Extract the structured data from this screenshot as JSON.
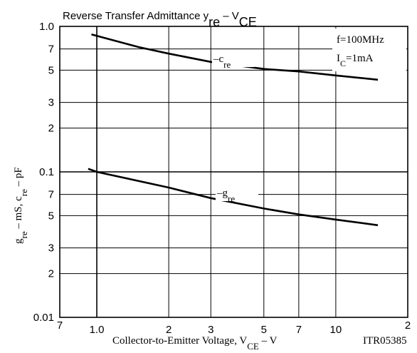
{
  "chart_data": {
    "type": "line",
    "title": [
      "Reverse Transfer Admittance  y",
      "re",
      " – V",
      "CE"
    ],
    "x_label": [
      "Collector-to-Emitter Voltage, V",
      "CE",
      " – V"
    ],
    "y_label": [
      "g",
      "re",
      "  –  mS,  c",
      "re",
      "  –  pF"
    ],
    "code": "ITR05385",
    "annotations": [
      [
        "f=100MHz"
      ],
      [
        "I",
        "C",
        "=1mA"
      ]
    ],
    "xscale": "log",
    "yscale": "log",
    "grid": true,
    "xlim": [
      0.7,
      20
    ],
    "xticks": [
      {
        "value": 0.7,
        "label": "7"
      },
      {
        "value": 1,
        "label": "1.0"
      },
      2,
      3,
      5,
      7,
      10,
      {
        "value": 20,
        "label": "2"
      }
    ],
    "ylim": [
      0.01,
      1
    ],
    "yticks": [
      {
        "value": 1,
        "label": "1.0"
      },
      {
        "value": 0.7,
        "label": "7"
      },
      {
        "value": 0.5,
        "label": "5"
      },
      {
        "value": 0.3,
        "label": "3"
      },
      {
        "value": 0.2,
        "label": "2"
      },
      0.1,
      {
        "value": 0.07,
        "label": "7"
      },
      {
        "value": 0.05,
        "label": "5"
      },
      {
        "value": 0.03,
        "label": "3"
      },
      {
        "value": 0.02,
        "label": "2"
      },
      0.01
    ],
    "series": [
      {
        "name": [
          "–c",
          "re"
        ],
        "color": "#000000",
        "x": [
          0.95,
          1.5,
          2,
          3,
          5,
          7,
          10,
          15
        ],
        "values": [
          0.88,
          0.72,
          0.65,
          0.57,
          0.51,
          0.49,
          0.46,
          0.43
        ]
      },
      {
        "name": [
          "–g",
          "re"
        ],
        "color": "#000000",
        "x": [
          0.92,
          1,
          2,
          3,
          5,
          7,
          10,
          15
        ],
        "values": [
          0.105,
          0.1,
          0.078,
          0.066,
          0.056,
          0.051,
          0.047,
          0.043
        ]
      }
    ]
  }
}
